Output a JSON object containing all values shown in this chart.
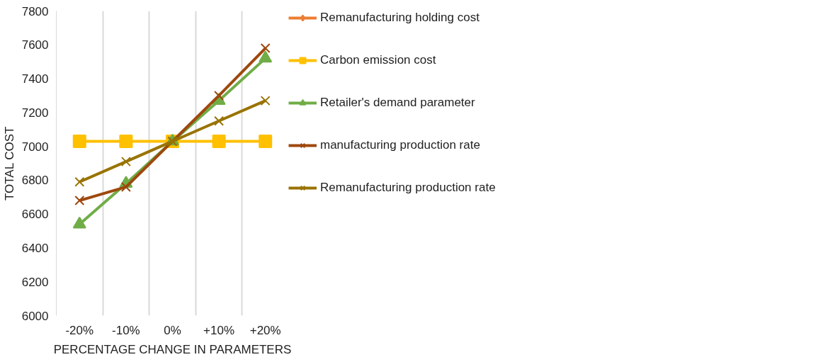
{
  "chart_data": {
    "type": "line",
    "xlabel": "PERCENTAGE CHANGE IN PARAMETERS",
    "ylabel": "TOTAL COST",
    "categories": [
      "-20%",
      "-10%",
      "0%",
      "+10%",
      "+20%"
    ],
    "ylim": [
      6000,
      7800
    ],
    "yticks": [
      6000,
      6200,
      6400,
      6600,
      6800,
      7000,
      7200,
      7400,
      7600,
      7800
    ],
    "grid": "x",
    "legend": "right",
    "line_style": "solid",
    "series": [
      {
        "name": "Remanufacturing holding cost",
        "color": "#ed7d31",
        "marker": "diamond",
        "values": [
          null,
          null,
          null,
          null,
          null
        ]
      },
      {
        "name": "Carbon emission cost",
        "color": "#ffc000",
        "marker": "square",
        "values": [
          7030,
          7030,
          7030,
          7030,
          7030
        ]
      },
      {
        "name": "Retailer's demand parameter",
        "color": "#70ad47",
        "marker": "triangle",
        "values": [
          6540,
          6780,
          7030,
          7270,
          7520
        ]
      },
      {
        "name": "manufacturing production rate",
        "color": "#9e480e",
        "marker": "cross",
        "values": [
          6680,
          6760,
          7030,
          7300,
          7580
        ]
      },
      {
        "name": "Remanufacturing production rate",
        "color": "#997300",
        "marker": "cross",
        "values": [
          6790,
          6910,
          7030,
          7150,
          7270
        ]
      }
    ]
  }
}
